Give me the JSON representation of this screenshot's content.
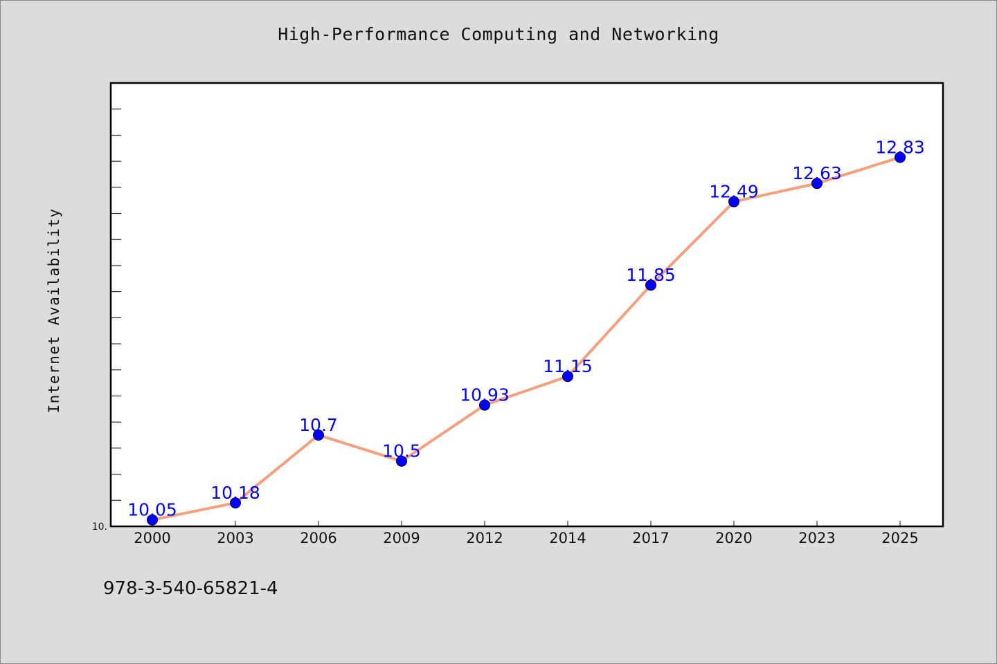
{
  "chart_data": {
    "type": "line",
    "title": "High-Performance Computing and Networking",
    "xlabel": "",
    "ylabel": "Internet Availability",
    "categories": [
      "2000",
      "2003",
      "2006",
      "2009",
      "2012",
      "2014",
      "2017",
      "2020",
      "2023",
      "2025"
    ],
    "series": [
      {
        "values": [
          10.05,
          10.18,
          10.7,
          10.5,
          10.93,
          11.15,
          11.85,
          12.49,
          12.63,
          12.83
        ]
      }
    ],
    "data_labels": [
      "10.05",
      "10.18",
      "10.7",
      "10.5",
      "10.93",
      "11.15",
      "11.85",
      "12.49",
      "12.63",
      "12.83]"
    ],
    "y_tick_label": "10.",
    "ylim": [
      10.0,
      13.4
    ],
    "grid": false,
    "legend": "none",
    "colors": {
      "line": "#f4a07e",
      "marker": "#0000ff",
      "label": "#0000ff",
      "background": "#dcdcdc",
      "plot_background": "#ffffff"
    }
  },
  "footer": {
    "isbn": "978-3-540-65821-4"
  }
}
